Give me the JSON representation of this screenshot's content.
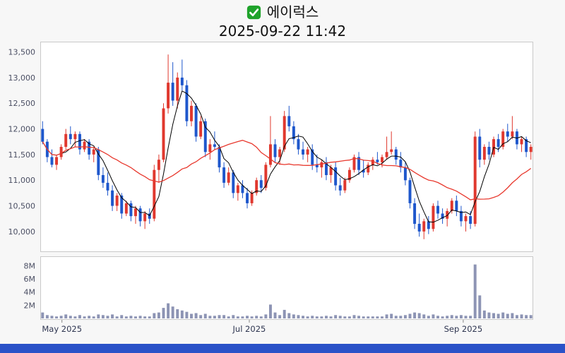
{
  "header": {
    "title": "에이럭스",
    "timestamp": "2025-09-22 11:42"
  },
  "colors": {
    "page_bg": "#f7f7f7",
    "panel_bg": "#ffffff",
    "panel_border": "#c9c9c9",
    "up_candle": "#e0382e",
    "down_candle": "#1e57cc",
    "ma_fast_line": "#000000",
    "ma_slow_line": "#e8392e",
    "volume_bar": "#8d94b4",
    "axis_text": "#4a4e63",
    "xlabel_text": "#2e3550",
    "check_green": "#1fa32b",
    "bottom_strip": "#2a52c8"
  },
  "chart_data": [
    {
      "type": "candlestick",
      "title": "에이럭스",
      "subtitle": "2025-09-22 11:42",
      "grid": false,
      "ylim": [
        9600,
        13700
      ],
      "ytick_values": [
        10000,
        10500,
        11000,
        11500,
        12000,
        12500,
        13000,
        13500
      ],
      "ytick_labels": [
        "10,000",
        "10,500",
        "11,000",
        "11,500",
        "12,000",
        "12,500",
        "13,000",
        "13,500"
      ],
      "xticks": [
        {
          "label": "May 2025",
          "pos": 0.044
        },
        {
          "label": "Jul 2025",
          "pos": 0.424
        },
        {
          "label": "Sep 2025",
          "pos": 0.858
        }
      ],
      "overlays": [
        {
          "name": "ma-fast",
          "window": 5,
          "color_key": "ma_fast_line",
          "width": 1
        },
        {
          "name": "ma-slow",
          "window": 20,
          "color_key": "ma_slow_line",
          "width": 1.3
        }
      ],
      "candles_ohlc": [
        [
          12000,
          12150,
          11700,
          11750
        ],
        [
          11750,
          11800,
          11350,
          11450
        ],
        [
          11450,
          11600,
          11250,
          11300
        ],
        [
          11300,
          11500,
          11200,
          11450
        ],
        [
          11450,
          11700,
          11400,
          11650
        ],
        [
          11650,
          12000,
          11600,
          11900
        ],
        [
          11900,
          12050,
          11700,
          11800
        ],
        [
          11800,
          11950,
          11650,
          11900
        ],
        [
          11900,
          11950,
          11500,
          11600
        ],
        [
          11600,
          11800,
          11550,
          11750
        ],
        [
          11750,
          11800,
          11400,
          11500
        ],
        [
          11500,
          11650,
          11350,
          11600
        ],
        [
          11600,
          11650,
          11000,
          11100
        ],
        [
          11100,
          11250,
          10850,
          10950
        ],
        [
          10950,
          11150,
          10700,
          10800
        ],
        [
          10800,
          10900,
          10400,
          10500
        ],
        [
          10500,
          10750,
          10400,
          10700
        ],
        [
          10700,
          10750,
          10250,
          10350
        ],
        [
          10350,
          10600,
          10300,
          10550
        ],
        [
          10550,
          10600,
          10200,
          10300
        ],
        [
          10300,
          10500,
          10150,
          10450
        ],
        [
          10450,
          10500,
          10100,
          10200
        ],
        [
          10200,
          10400,
          10050,
          10350
        ],
        [
          10350,
          10450,
          10150,
          10250
        ],
        [
          10250,
          11300,
          10200,
          11200
        ],
        [
          11200,
          11500,
          10950,
          11400
        ],
        [
          11400,
          12500,
          11350,
          12400
        ],
        [
          12400,
          13450,
          12300,
          12900
        ],
        [
          12900,
          13300,
          12450,
          12550
        ],
        [
          12550,
          13100,
          12400,
          13000
        ],
        [
          13000,
          13350,
          12750,
          12850
        ],
        [
          12850,
          12950,
          12050,
          12150
        ],
        [
          12150,
          12550,
          12050,
          12450
        ],
        [
          12450,
          12500,
          11750,
          11850
        ],
        [
          11850,
          12250,
          11800,
          12150
        ],
        [
          12150,
          12200,
          11450,
          11550
        ],
        [
          11550,
          11800,
          11400,
          11700
        ],
        [
          11700,
          11950,
          11600,
          11650
        ],
        [
          11650,
          11700,
          11150,
          11250
        ],
        [
          11250,
          11350,
          10850,
          10950
        ],
        [
          10950,
          11250,
          10900,
          11150
        ],
        [
          11150,
          11200,
          10650,
          10750
        ],
        [
          10750,
          10950,
          10600,
          10900
        ],
        [
          10900,
          11000,
          10650,
          10750
        ],
        [
          10750,
          10850,
          10450,
          10550
        ],
        [
          10550,
          10800,
          10500,
          10750
        ],
        [
          10750,
          11050,
          10700,
          11000
        ],
        [
          11000,
          11100,
          10750,
          10850
        ],
        [
          10850,
          11350,
          10800,
          11300
        ],
        [
          11300,
          12250,
          11250,
          11700
        ],
        [
          11700,
          11800,
          11350,
          11450
        ],
        [
          11450,
          11650,
          11300,
          11600
        ],
        [
          11600,
          12350,
          11550,
          12250
        ],
        [
          12250,
          12450,
          11950,
          12050
        ],
        [
          12050,
          12150,
          11700,
          11800
        ],
        [
          11800,
          11900,
          11500,
          11600
        ],
        [
          11600,
          11750,
          11400,
          11500
        ],
        [
          11500,
          11650,
          11350,
          11600
        ],
        [
          11600,
          11700,
          11200,
          11300
        ],
        [
          11300,
          11500,
          11150,
          11250
        ],
        [
          11250,
          11400,
          11050,
          11350
        ],
        [
          11350,
          11450,
          11000,
          11100
        ],
        [
          11100,
          11300,
          10950,
          11250
        ],
        [
          11250,
          11350,
          10800,
          10900
        ],
        [
          10900,
          11050,
          10700,
          10800
        ],
        [
          10800,
          11050,
          10750,
          11000
        ],
        [
          11000,
          11250,
          10950,
          11200
        ],
        [
          11200,
          11500,
          11150,
          11450
        ],
        [
          11450,
          11550,
          11100,
          11200
        ],
        [
          11200,
          11400,
          11050,
          11150
        ],
        [
          11150,
          11350,
          11100,
          11300
        ],
        [
          11300,
          11450,
          11200,
          11400
        ],
        [
          11400,
          11550,
          11300,
          11350
        ],
        [
          11350,
          11500,
          11250,
          11450
        ],
        [
          11450,
          11850,
          11400,
          11550
        ],
        [
          11550,
          11950,
          11500,
          11600
        ],
        [
          11600,
          11650,
          11300,
          11400
        ],
        [
          11400,
          11550,
          11150,
          11250
        ],
        [
          11250,
          11350,
          10900,
          11000
        ],
        [
          11000,
          11050,
          10450,
          10550
        ],
        [
          10550,
          10650,
          10050,
          10150
        ],
        [
          10150,
          10350,
          9900,
          10000
        ],
        [
          10000,
          10250,
          9850,
          10200
        ],
        [
          10200,
          10300,
          9950,
          10050
        ],
        [
          10050,
          10550,
          10000,
          10500
        ],
        [
          10500,
          10600,
          10250,
          10350
        ],
        [
          10350,
          10450,
          10150,
          10250
        ],
        [
          10250,
          10450,
          10100,
          10400
        ],
        [
          10400,
          10650,
          10350,
          10600
        ],
        [
          10600,
          10700,
          10300,
          10400
        ],
        [
          10400,
          10500,
          10100,
          10200
        ],
        [
          10200,
          10350,
          10000,
          10300
        ],
        [
          10300,
          10400,
          10050,
          10150
        ],
        [
          10150,
          11950,
          10100,
          11850
        ],
        [
          11850,
          12000,
          11250,
          11400
        ],
        [
          11400,
          11700,
          11300,
          11650
        ],
        [
          11650,
          11750,
          11400,
          11500
        ],
        [
          11500,
          11850,
          11450,
          11800
        ],
        [
          11800,
          11900,
          11550,
          11650
        ],
        [
          11650,
          12000,
          11600,
          11950
        ],
        [
          11950,
          12100,
          11750,
          11850
        ],
        [
          11850,
          12250,
          11800,
          11950
        ],
        [
          11950,
          12000,
          11600,
          11700
        ],
        [
          11700,
          11850,
          11550,
          11800
        ],
        [
          11800,
          11850,
          11450,
          11550
        ],
        [
          11550,
          11700,
          11400,
          11650
        ]
      ]
    },
    {
      "type": "bar",
      "name": "volume",
      "ylim_millions": [
        0,
        8.8
      ],
      "ytick_values_millions": [
        2,
        4,
        6,
        8
      ],
      "ytick_labels": [
        "2M",
        "4M",
        "6M",
        "8M"
      ],
      "values_millions": [
        0.9,
        0.5,
        0.4,
        0.3,
        0.4,
        0.6,
        0.4,
        0.3,
        0.5,
        0.3,
        0.4,
        0.3,
        0.6,
        0.5,
        0.4,
        0.6,
        0.3,
        0.5,
        0.3,
        0.4,
        0.3,
        0.4,
        0.3,
        0.3,
        0.8,
        0.9,
        1.6,
        2.3,
        1.8,
        1.4,
        1.2,
        1.0,
        0.7,
        0.8,
        0.5,
        0.7,
        0.4,
        0.4,
        0.5,
        0.5,
        0.3,
        0.5,
        0.3,
        0.3,
        0.4,
        0.3,
        0.4,
        0.3,
        0.6,
        2.1,
        0.9,
        0.5,
        1.3,
        0.8,
        0.6,
        0.5,
        0.4,
        0.3,
        0.4,
        0.3,
        0.3,
        0.4,
        0.3,
        0.5,
        0.4,
        0.3,
        0.3,
        0.5,
        0.4,
        0.3,
        0.3,
        0.3,
        0.3,
        0.3,
        0.6,
        0.7,
        0.4,
        0.4,
        0.5,
        0.7,
        0.9,
        0.8,
        0.6,
        0.4,
        0.6,
        0.4,
        0.3,
        0.4,
        0.5,
        0.4,
        0.5,
        0.4,
        0.4,
        8.2,
        3.5,
        1.2,
        0.9,
        0.8,
        0.7,
        0.9,
        0.7,
        0.8,
        0.5,
        0.6,
        0.5,
        0.5
      ]
    }
  ]
}
